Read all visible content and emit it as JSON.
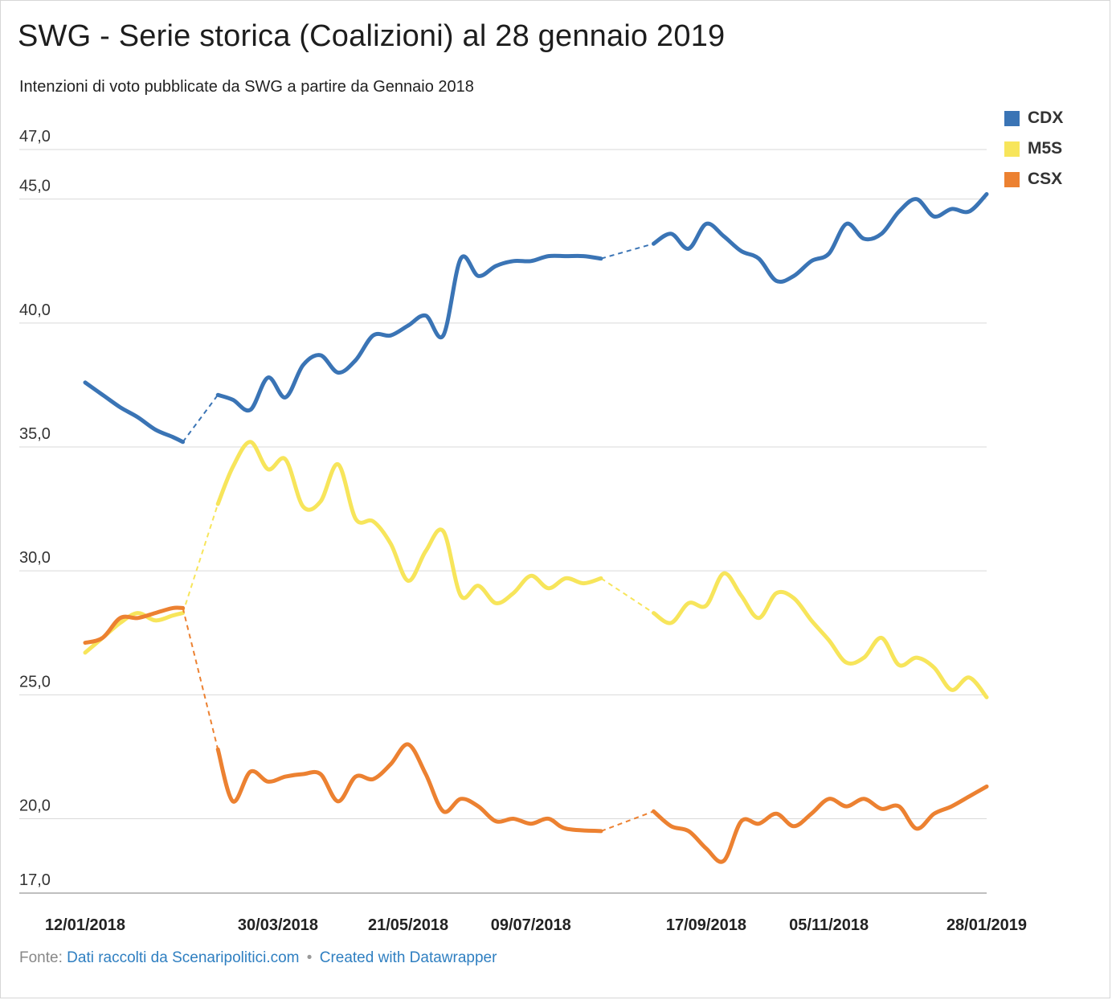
{
  "title": "SWG - Serie storica (Coalizioni) al 28 gennaio 2019",
  "subtitle": "Intenzioni di voto pubblicate da SWG a partire da Gennaio 2018",
  "footer": {
    "prefix": "Fonte:",
    "source_link": "Dati raccolti da Scenaripolitici.com",
    "separator": "•",
    "credit_link": "Created with Datawrapper"
  },
  "chart_data": {
    "type": "line",
    "ylim": [
      17.0,
      47.0
    ],
    "y_ticks": [
      {
        "value": 47.0,
        "label": "47,0"
      },
      {
        "value": 45.0,
        "label": "45,0"
      },
      {
        "value": 40.0,
        "label": "40,0"
      },
      {
        "value": 35.0,
        "label": "35,0"
      },
      {
        "value": 30.0,
        "label": "30,0"
      },
      {
        "value": 25.0,
        "label": "25,0"
      },
      {
        "value": 20.0,
        "label": "20,0"
      },
      {
        "value": 17.0,
        "label": "17,0"
      }
    ],
    "x_ticks": [
      {
        "date": "2018-01-12",
        "label": "12/01/2018"
      },
      {
        "date": "2018-03-30",
        "label": "30/03/2018"
      },
      {
        "date": "2018-05-21",
        "label": "21/05/2018"
      },
      {
        "date": "2018-07-09",
        "label": "09/07/2018"
      },
      {
        "date": "2018-09-17",
        "label": "17/09/2018"
      },
      {
        "date": "2018-11-05",
        "label": "05/11/2018"
      },
      {
        "date": "2019-01-28",
        "label": "28/01/2019"
      }
    ],
    "legend_position": "top-right",
    "grid": true,
    "dashed_gaps": [
      [
        "2018-02-20",
        "2018-03-06"
      ],
      [
        "2018-08-06",
        "2018-08-27"
      ]
    ],
    "series": [
      {
        "name": "CDX",
        "color": "#3a74b5",
        "points": [
          [
            "2018-01-12",
            37.6
          ],
          [
            "2018-01-19",
            37.1
          ],
          [
            "2018-01-26",
            36.6
          ],
          [
            "2018-02-02",
            36.2
          ],
          [
            "2018-02-09",
            35.7
          ],
          [
            "2018-02-16",
            35.4
          ],
          [
            "2018-02-20",
            35.2
          ],
          [
            "2018-03-06",
            37.1
          ],
          [
            "2018-03-12",
            36.9
          ],
          [
            "2018-03-19",
            36.5
          ],
          [
            "2018-03-26",
            37.8
          ],
          [
            "2018-04-02",
            37.0
          ],
          [
            "2018-04-09",
            38.3
          ],
          [
            "2018-04-16",
            38.7
          ],
          [
            "2018-04-23",
            38.0
          ],
          [
            "2018-04-30",
            38.5
          ],
          [
            "2018-05-07",
            39.5
          ],
          [
            "2018-05-14",
            39.5
          ],
          [
            "2018-05-21",
            39.9
          ],
          [
            "2018-05-28",
            40.3
          ],
          [
            "2018-06-04",
            39.5
          ],
          [
            "2018-06-11",
            42.6
          ],
          [
            "2018-06-18",
            41.9
          ],
          [
            "2018-06-25",
            42.3
          ],
          [
            "2018-07-02",
            42.5
          ],
          [
            "2018-07-09",
            42.5
          ],
          [
            "2018-07-16",
            42.7
          ],
          [
            "2018-07-23",
            42.7
          ],
          [
            "2018-07-30",
            42.7
          ],
          [
            "2018-08-06",
            42.6
          ],
          [
            "2018-08-27",
            43.2
          ],
          [
            "2018-09-03",
            43.6
          ],
          [
            "2018-09-10",
            43.0
          ],
          [
            "2018-09-17",
            44.0
          ],
          [
            "2018-09-24",
            43.5
          ],
          [
            "2018-10-01",
            42.9
          ],
          [
            "2018-10-08",
            42.6
          ],
          [
            "2018-10-15",
            41.7
          ],
          [
            "2018-10-22",
            41.9
          ],
          [
            "2018-10-29",
            42.5
          ],
          [
            "2018-11-05",
            42.8
          ],
          [
            "2018-11-12",
            44.0
          ],
          [
            "2018-11-19",
            43.4
          ],
          [
            "2018-11-26",
            43.6
          ],
          [
            "2018-12-03",
            44.5
          ],
          [
            "2018-12-10",
            45.0
          ],
          [
            "2018-12-17",
            44.3
          ],
          [
            "2018-12-24",
            44.6
          ],
          [
            "2018-12-31",
            44.5
          ],
          [
            "2019-01-07",
            45.2
          ]
        ]
      },
      {
        "name": "M5S",
        "color": "#f7e55b",
        "points": [
          [
            "2018-01-12",
            26.7
          ],
          [
            "2018-01-19",
            27.3
          ],
          [
            "2018-01-26",
            27.9
          ],
          [
            "2018-02-02",
            28.3
          ],
          [
            "2018-02-09",
            28.0
          ],
          [
            "2018-02-16",
            28.2
          ],
          [
            "2018-02-20",
            28.3
          ],
          [
            "2018-03-06",
            32.7
          ],
          [
            "2018-03-12",
            34.2
          ],
          [
            "2018-03-19",
            35.2
          ],
          [
            "2018-03-26",
            34.1
          ],
          [
            "2018-04-02",
            34.5
          ],
          [
            "2018-04-09",
            32.6
          ],
          [
            "2018-04-16",
            32.8
          ],
          [
            "2018-04-23",
            34.3
          ],
          [
            "2018-04-30",
            32.1
          ],
          [
            "2018-05-07",
            32.0
          ],
          [
            "2018-05-14",
            31.1
          ],
          [
            "2018-05-21",
            29.6
          ],
          [
            "2018-05-28",
            30.8
          ],
          [
            "2018-06-04",
            31.6
          ],
          [
            "2018-06-11",
            29.0
          ],
          [
            "2018-06-18",
            29.4
          ],
          [
            "2018-06-25",
            28.7
          ],
          [
            "2018-07-02",
            29.1
          ],
          [
            "2018-07-09",
            29.8
          ],
          [
            "2018-07-16",
            29.3
          ],
          [
            "2018-07-23",
            29.7
          ],
          [
            "2018-07-30",
            29.5
          ],
          [
            "2018-08-06",
            29.7
          ],
          [
            "2018-08-27",
            28.3
          ],
          [
            "2018-09-03",
            27.9
          ],
          [
            "2018-09-10",
            28.7
          ],
          [
            "2018-09-17",
            28.6
          ],
          [
            "2018-09-24",
            29.9
          ],
          [
            "2018-10-01",
            29.0
          ],
          [
            "2018-10-08",
            28.1
          ],
          [
            "2018-10-15",
            29.1
          ],
          [
            "2018-10-22",
            28.9
          ],
          [
            "2018-10-29",
            28.0
          ],
          [
            "2018-11-05",
            27.2
          ],
          [
            "2018-11-12",
            26.3
          ],
          [
            "2018-11-19",
            26.5
          ],
          [
            "2018-11-26",
            27.3
          ],
          [
            "2018-12-03",
            26.2
          ],
          [
            "2018-12-10",
            26.5
          ],
          [
            "2018-12-17",
            26.1
          ],
          [
            "2018-12-24",
            25.2
          ],
          [
            "2018-12-31",
            25.7
          ],
          [
            "2019-01-07",
            24.9
          ]
        ]
      },
      {
        "name": "CSX",
        "color": "#ec8131",
        "points": [
          [
            "2018-01-12",
            27.1
          ],
          [
            "2018-01-19",
            27.3
          ],
          [
            "2018-01-26",
            28.1
          ],
          [
            "2018-02-02",
            28.1
          ],
          [
            "2018-02-09",
            28.3
          ],
          [
            "2018-02-16",
            28.5
          ],
          [
            "2018-02-20",
            28.5
          ],
          [
            "2018-03-06",
            22.8
          ],
          [
            "2018-03-12",
            20.7
          ],
          [
            "2018-03-19",
            21.9
          ],
          [
            "2018-03-26",
            21.5
          ],
          [
            "2018-04-02",
            21.7
          ],
          [
            "2018-04-09",
            21.8
          ],
          [
            "2018-04-16",
            21.8
          ],
          [
            "2018-04-23",
            20.7
          ],
          [
            "2018-04-30",
            21.7
          ],
          [
            "2018-05-07",
            21.6
          ],
          [
            "2018-05-14",
            22.2
          ],
          [
            "2018-05-21",
            23.0
          ],
          [
            "2018-05-28",
            21.8
          ],
          [
            "2018-06-04",
            20.3
          ],
          [
            "2018-06-11",
            20.8
          ],
          [
            "2018-06-18",
            20.5
          ],
          [
            "2018-06-25",
            19.9
          ],
          [
            "2018-07-02",
            20.0
          ],
          [
            "2018-07-09",
            19.8
          ],
          [
            "2018-07-16",
            20.0
          ],
          [
            "2018-07-23",
            19.6
          ],
          [
            "2018-08-06",
            19.5
          ],
          [
            "2018-08-27",
            20.3
          ],
          [
            "2018-09-03",
            19.7
          ],
          [
            "2018-09-10",
            19.5
          ],
          [
            "2018-09-17",
            18.8
          ],
          [
            "2018-09-24",
            18.3
          ],
          [
            "2018-10-01",
            19.9
          ],
          [
            "2018-10-08",
            19.8
          ],
          [
            "2018-10-15",
            20.2
          ],
          [
            "2018-10-22",
            19.7
          ],
          [
            "2018-10-29",
            20.2
          ],
          [
            "2018-11-05",
            20.8
          ],
          [
            "2018-11-12",
            20.5
          ],
          [
            "2018-11-19",
            20.8
          ],
          [
            "2018-11-26",
            20.4
          ],
          [
            "2018-12-03",
            20.5
          ],
          [
            "2018-12-10",
            19.6
          ],
          [
            "2018-12-17",
            20.2
          ],
          [
            "2018-12-24",
            20.5
          ],
          [
            "2018-12-31",
            20.9
          ],
          [
            "2019-01-07",
            21.3
          ]
        ]
      }
    ]
  }
}
